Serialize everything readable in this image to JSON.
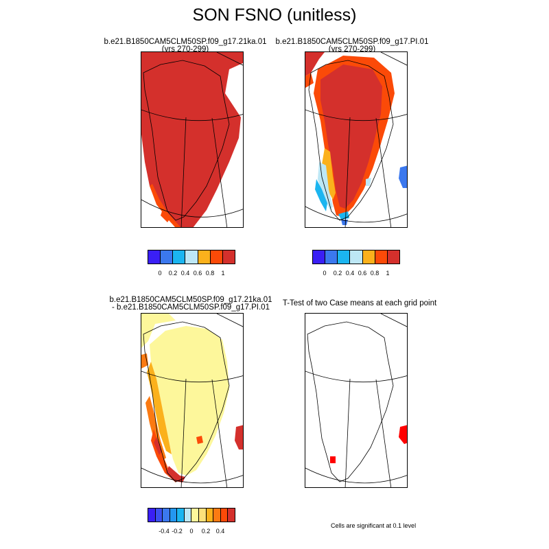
{
  "chart_data": {
    "type": "heatmap",
    "title": "SON FSNO (unitless)",
    "panels": [
      {
        "id": "case1",
        "title_lines": [
          "b.e21.B1850CAM5CLM50SP.f09_g17.21ka.01",
          "(yrs 270-299)"
        ],
        "colorbar": {
          "colors": [
            "#3a1ff5",
            "#3b78ee",
            "#1bb5f0",
            "#bde7f5",
            "#fbb11c",
            "#fb4a08",
            "#d4302c"
          ],
          "tick_labels": [
            "0",
            "0.2",
            "0.4",
            "0.6",
            "0.8",
            "1"
          ]
        }
      },
      {
        "id": "case2",
        "title_lines": [
          "b.e21.B1850CAM5CLM50SP.f09_g17.PI.01",
          "(yrs 270-299)"
        ],
        "colorbar": {
          "colors": [
            "#3a1ff5",
            "#3b78ee",
            "#1bb5f0",
            "#bde7f5",
            "#fbb11c",
            "#fb4a08",
            "#d4302c"
          ],
          "tick_labels": [
            "0",
            "0.2",
            "0.4",
            "0.6",
            "0.8",
            "1"
          ]
        }
      },
      {
        "id": "difference",
        "title_lines": [
          "b.e21.B1850CAM5CLM50SP.f09_g17.21ka.01",
          "- b.e21.B1850CAM5CLM50SP.f09_g17.PI.01"
        ],
        "colorbar": {
          "colors": [
            "#3a1ff5",
            "#3b4ff0",
            "#3b78ee",
            "#2497f0",
            "#1bb5f0",
            "#bde7f5",
            "#fdf79b",
            "#fde07a",
            "#fbb11c",
            "#fb7a12",
            "#fb4a08",
            "#d4302c"
          ],
          "tick_labels": [
            "-0.4",
            "-0.2",
            "0",
            "0.2",
            "0.4"
          ]
        }
      },
      {
        "id": "ttest",
        "title_lines": [
          "T-Test of two Case means at each grid point"
        ],
        "note": "Cells are significant at 0.1 level"
      }
    ]
  }
}
